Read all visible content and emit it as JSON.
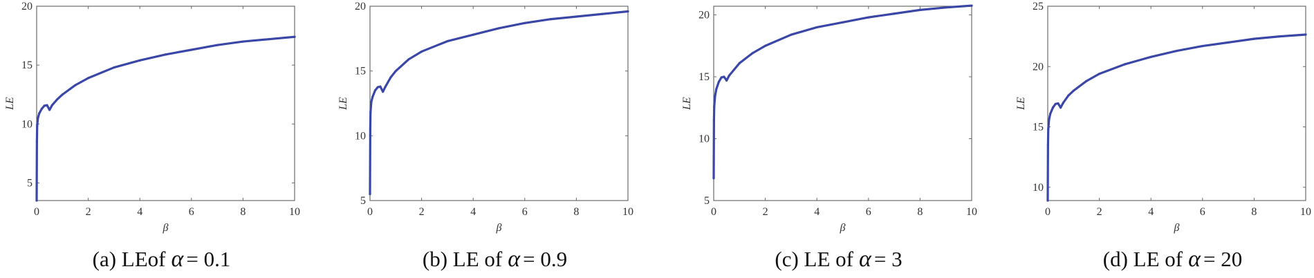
{
  "chart_data": [
    {
      "type": "line",
      "caption": {
        "prefix": "(a) LEof",
        "symbol": "α",
        "suffix": "= 0.1"
      },
      "xlabel": "β",
      "ylabel": "LE",
      "xlim": [
        0,
        10
      ],
      "ylim": [
        3.5,
        20
      ],
      "xticks": [
        0,
        2,
        4,
        6,
        8,
        10
      ],
      "yticks": [
        5,
        10,
        15,
        20
      ],
      "color": "#3a47a6",
      "x": [
        0,
        0.01,
        0.02,
        0.05,
        0.1,
        0.2,
        0.3,
        0.4,
        0.5,
        0.6,
        0.8,
        1,
        1.5,
        2,
        3,
        4,
        5,
        6,
        7,
        8,
        9,
        10
      ],
      "y": [
        3.5,
        8.5,
        9.9,
        10.5,
        10.9,
        11.3,
        11.55,
        11.6,
        11.2,
        11.6,
        12.1,
        12.5,
        13.3,
        13.9,
        14.8,
        15.4,
        15.9,
        16.3,
        16.7,
        17.0,
        17.2,
        17.4
      ]
    },
    {
      "type": "line",
      "caption": {
        "prefix": "(b) LE of",
        "symbol": "α",
        "suffix": "= 0.9"
      },
      "xlabel": "β",
      "ylabel": "LE",
      "xlim": [
        0,
        10
      ],
      "ylim": [
        5,
        20
      ],
      "xticks": [
        0,
        2,
        4,
        6,
        8,
        10
      ],
      "yticks": [
        5,
        10,
        15,
        20
      ],
      "color": "#3a47a6",
      "x": [
        0,
        0.01,
        0.02,
        0.05,
        0.1,
        0.2,
        0.3,
        0.4,
        0.5,
        0.6,
        0.8,
        1,
        1.5,
        2,
        3,
        4,
        5,
        6,
        7,
        8,
        9,
        10
      ],
      "y": [
        5.5,
        10.5,
        11.8,
        12.6,
        13.0,
        13.5,
        13.75,
        13.8,
        13.4,
        13.8,
        14.5,
        15.0,
        15.9,
        16.5,
        17.3,
        17.8,
        18.3,
        18.7,
        19.0,
        19.2,
        19.4,
        19.6
      ]
    },
    {
      "type": "line",
      "caption": {
        "prefix": "(c) LE of",
        "symbol": "α",
        "suffix": "= 3"
      },
      "xlabel": "β",
      "ylabel": "LE",
      "xlim": [
        0,
        10
      ],
      "ylim": [
        5,
        20.7
      ],
      "xticks": [
        0,
        2,
        4,
        6,
        8,
        10
      ],
      "yticks": [
        5,
        10,
        15,
        20
      ],
      "color": "#3a47a6",
      "x": [
        0,
        0.01,
        0.02,
        0.05,
        0.1,
        0.2,
        0.3,
        0.4,
        0.5,
        0.6,
        0.8,
        1,
        1.5,
        2,
        3,
        4,
        5,
        6,
        7,
        8,
        9,
        10
      ],
      "y": [
        6.8,
        11.5,
        12.6,
        13.4,
        14.0,
        14.6,
        14.95,
        15.0,
        14.7,
        15.1,
        15.6,
        16.1,
        16.9,
        17.5,
        18.4,
        19.0,
        19.4,
        19.8,
        20.1,
        20.4,
        20.6,
        20.75
      ]
    },
    {
      "type": "line",
      "caption": {
        "prefix": "(d) LE of",
        "symbol": "α",
        "suffix": "= 20"
      },
      "xlabel": "β",
      "ylabel": "LE",
      "xlim": [
        0,
        10
      ],
      "ylim": [
        8.9,
        25
      ],
      "xticks": [
        0,
        2,
        4,
        6,
        8,
        10
      ],
      "yticks": [
        10,
        15,
        20,
        25
      ],
      "color": "#3a47a6",
      "x": [
        0,
        0.01,
        0.02,
        0.05,
        0.1,
        0.2,
        0.3,
        0.4,
        0.5,
        0.6,
        0.8,
        1,
        1.5,
        2,
        3,
        4,
        5,
        6,
        7,
        8,
        9,
        10
      ],
      "y": [
        8.9,
        13.5,
        14.8,
        15.6,
        16.1,
        16.6,
        16.9,
        16.95,
        16.6,
        17.0,
        17.6,
        18.0,
        18.8,
        19.4,
        20.2,
        20.8,
        21.3,
        21.7,
        22.0,
        22.3,
        22.5,
        22.65
      ]
    }
  ]
}
